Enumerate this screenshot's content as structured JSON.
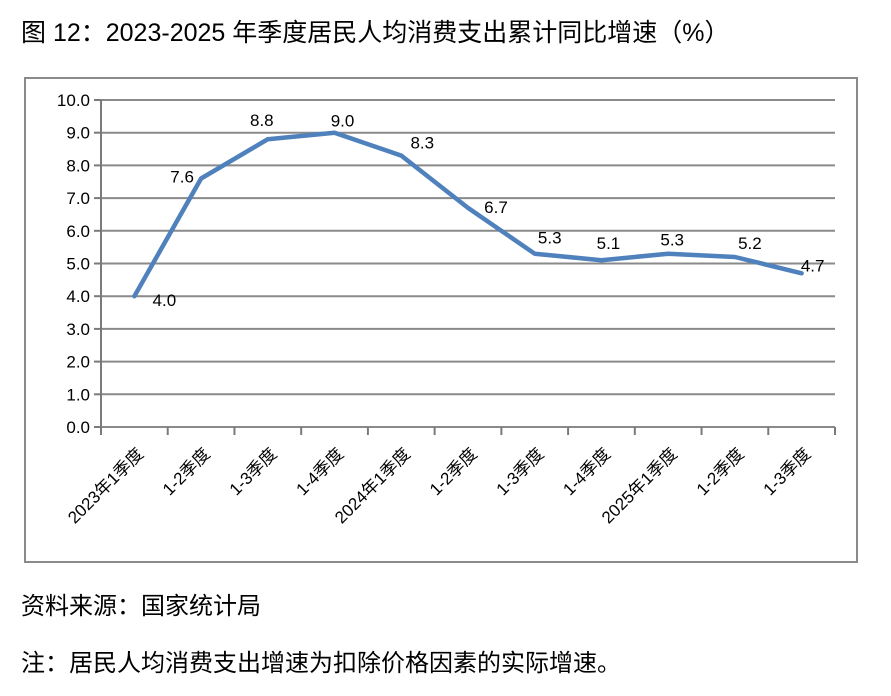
{
  "title": "图 12：2023-2025 年季度居民人均消费支出累计同比增速（%）",
  "source": "资料来源：国家统计局",
  "note": "注：居民人均消费支出增速为扣除价格因素的实际增速。",
  "chart_data": {
    "type": "line",
    "title": "2023-2025 年季度居民人均消费支出累计同比增速（%）",
    "categories": [
      "2023年1季度",
      "1-2季度",
      "1-3季度",
      "1-4季度",
      "2024年1季度",
      "1-2季度",
      "1-3季度",
      "1-4季度",
      "2025年1季度",
      "1-2季度",
      "1-3季度"
    ],
    "values": [
      4.0,
      7.6,
      8.8,
      9.0,
      8.3,
      6.7,
      5.3,
      5.1,
      5.3,
      5.2,
      4.7
    ],
    "data_labels": [
      "4.0",
      "7.6",
      "8.8",
      "9.0",
      "8.3",
      "6.7",
      "5.3",
      "5.1",
      "5.3",
      "5.2",
      "4.7"
    ],
    "xlabel": "",
    "ylabel": "",
    "ylim": [
      0,
      10
    ],
    "ytick_labels": [
      "0.0",
      "1.0",
      "2.0",
      "3.0",
      "4.0",
      "5.0",
      "6.0",
      "7.0",
      "8.0",
      "9.0",
      "10.0"
    ],
    "grid": true,
    "legend": "none",
    "line_color": "#4f81bd",
    "gridline_color": "#8a8a8a",
    "axis_color": "#7a7a7a",
    "tick_label_color": "#000000",
    "data_label_color": "#000000"
  }
}
